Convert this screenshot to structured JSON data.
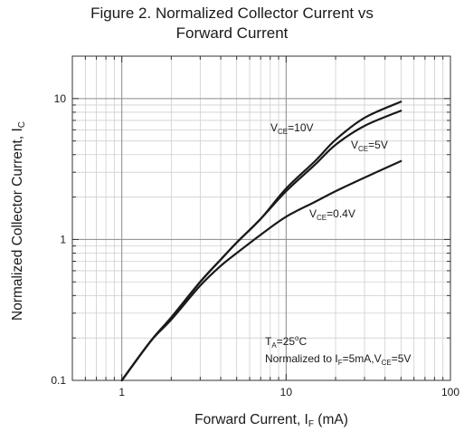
{
  "chart_data": {
    "type": "line",
    "title_lines": [
      "Figure 2. Normalized Collector Current vs",
      "Forward Current"
    ],
    "xlabel": {
      "text": "Forward Current, I",
      "sub": "F",
      "suffix": " (mA)"
    },
    "ylabel": {
      "text": "Normalized Collector Current, I",
      "sub": "C"
    },
    "x_scale": "log",
    "y_scale": "log",
    "xlim": [
      0.5,
      100
    ],
    "ylim": [
      0.1,
      20
    ],
    "x_ticks": [
      {
        "value": 1,
        "label": "1"
      },
      {
        "value": 10,
        "label": "10"
      },
      {
        "value": 100,
        "label": "100"
      }
    ],
    "y_ticks": [
      {
        "value": 0.1,
        "label": "0.1"
      },
      {
        "value": 1,
        "label": "1"
      },
      {
        "value": 10,
        "label": "10"
      }
    ],
    "grid": true,
    "series": [
      {
        "name": "V_CE=10V",
        "label": {
          "main": "V",
          "sub": "CE",
          "suffix": "=10V"
        },
        "x": [
          1,
          1.5,
          2,
          3,
          4,
          5,
          7,
          10,
          15,
          20,
          30,
          50
        ],
        "y": [
          0.1,
          0.19,
          0.28,
          0.5,
          0.72,
          0.95,
          1.4,
          2.3,
          3.6,
          5.1,
          7.3,
          9.5
        ]
      },
      {
        "name": "V_CE=5V",
        "label": {
          "main": "V",
          "sub": "CE",
          "suffix": "=5V"
        },
        "x": [
          1,
          1.5,
          2,
          3,
          4,
          5,
          7,
          10,
          15,
          20,
          30,
          50
        ],
        "y": [
          0.1,
          0.19,
          0.28,
          0.5,
          0.72,
          0.95,
          1.4,
          2.2,
          3.4,
          4.7,
          6.4,
          8.2
        ]
      },
      {
        "name": "V_CE=0.4V",
        "label": {
          "main": "V",
          "sub": "CE",
          "suffix": "=0.4V"
        },
        "x": [
          1,
          1.5,
          2,
          3,
          4,
          5,
          7,
          10,
          15,
          20,
          30,
          50
        ],
        "y": [
          0.1,
          0.19,
          0.27,
          0.47,
          0.65,
          0.8,
          1.08,
          1.45,
          1.85,
          2.2,
          2.75,
          3.6
        ]
      }
    ],
    "annotations": {
      "ta": {
        "main": "T",
        "sub": "A",
        "mid": "=25",
        "sup": "o",
        "suffix": "C"
      },
      "norm": {
        "pre": "Normalized to I",
        "sub1": "F",
        "mid": "=5mA,V",
        "sub2": "CE",
        "suffix": "=5V"
      }
    }
  }
}
